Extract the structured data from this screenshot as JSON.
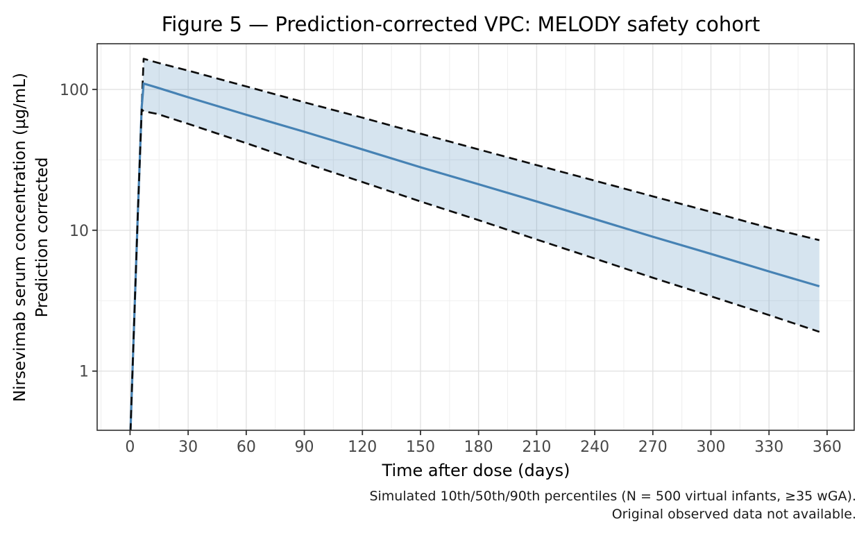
{
  "figure": {
    "title": "Figure 5 — Prediction-corrected VPC: MELODY safety cohort",
    "x_axis": {
      "label": "Time after dose (days)"
    },
    "y_axis": {
      "label_line1": "Nirsevimab serum concentration (µg/mL)",
      "label_line2": "Prediction corrected"
    },
    "caption_line1": "Simulated 10th/50th/90th percentiles (N = 500 virtual infants, ≥35 wGA).",
    "caption_line2": "Original observed data not available."
  },
  "colors": {
    "median_line": "#4682B4",
    "percentile_line": "#0d0d0d",
    "ribbon_fill": "#4682B4",
    "ribbon_opacity": 0.22,
    "grid_major": "#e2e2e2",
    "grid_minor": "#efefef",
    "panel_border": "#2f2f2f",
    "tick_mark": "#2f2f2f",
    "tick_label": "#474747",
    "text": "#000000"
  },
  "chart_data": {
    "type": "line",
    "title": "Figure 5 — Prediction-corrected VPC: MELODY safety cohort",
    "xlabel": "Time after dose (days)",
    "ylabel": "Nirsevimab serum concentration (µg/mL) — Prediction corrected",
    "caption": "Simulated 10th/50th/90th percentiles (N = 500 virtual infants, ≥35 wGA). Original observed data not available.",
    "y_scale": "log10",
    "grid": true,
    "legend": "none",
    "xlim": [
      -17,
      374
    ],
    "ylim": [
      0.38,
      211
    ],
    "x_ticks": [
      0,
      30,
      60,
      90,
      120,
      150,
      180,
      210,
      240,
      270,
      300,
      330,
      360
    ],
    "y_ticks": [
      1,
      10,
      100
    ],
    "x": [
      0,
      2,
      4,
      6,
      7,
      14,
      30,
      60,
      90,
      120,
      150,
      180,
      210,
      240,
      270,
      300,
      330,
      356
    ],
    "series": [
      {
        "name": "90th percentile (simulated)",
        "style": "dashed",
        "values": [
          0.3,
          2,
          13,
          75,
          165,
          155,
          136,
          105,
          81,
          63,
          48.5,
          37.5,
          29,
          22.5,
          17.4,
          13.5,
          10.4,
          8.5
        ]
      },
      {
        "name": "50th percentile / median (simulated)",
        "style": "solid",
        "values": [
          0.3,
          2,
          13,
          75,
          110,
          103,
          88,
          66,
          50,
          37.5,
          28,
          21.2,
          16,
          12,
          9.0,
          6.8,
          5.1,
          4.0
        ]
      },
      {
        "name": "10th percentile (simulated)",
        "style": "dashed",
        "values": [
          0.3,
          2,
          13,
          72,
          70,
          67,
          57,
          41.5,
          30,
          22,
          16,
          11.8,
          8.6,
          6.3,
          4.6,
          3.4,
          2.5,
          1.9
        ]
      }
    ],
    "ribbon_between": [
      "90th percentile (simulated)",
      "10th percentile (simulated)"
    ]
  }
}
